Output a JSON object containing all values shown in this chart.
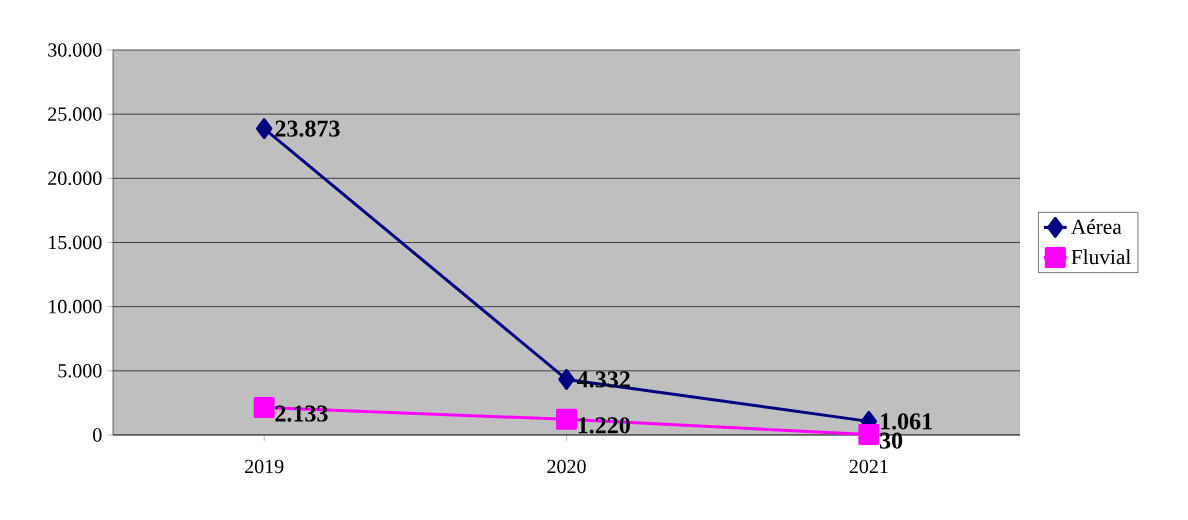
{
  "chart_data": {
    "type": "line",
    "categories": [
      "2019",
      "2020",
      "2021"
    ],
    "series": [
      {
        "name": "Aérea",
        "color": "#000080",
        "marker": "diamond",
        "values": [
          23873,
          4332,
          1061
        ],
        "value_labels": [
          "23.873",
          "4.332",
          "1.061"
        ]
      },
      {
        "name": "Fluvial",
        "color": "#ff00ff",
        "marker": "square",
        "values": [
          2133,
          1220,
          30
        ],
        "value_labels": [
          "2.133",
          "1.220",
          "30"
        ]
      }
    ],
    "ylim": [
      0,
      30000
    ],
    "yticks": [
      {
        "value": 0,
        "label": "0"
      },
      {
        "value": 5000,
        "label": "5.000"
      },
      {
        "value": 10000,
        "label": "10.000"
      },
      {
        "value": 15000,
        "label": "15.000"
      },
      {
        "value": 20000,
        "label": "20.000"
      },
      {
        "value": 25000,
        "label": "25.000"
      },
      {
        "value": 30000,
        "label": "30.000"
      }
    ],
    "grid": "y",
    "legend": "right",
    "line_style": "solid"
  }
}
